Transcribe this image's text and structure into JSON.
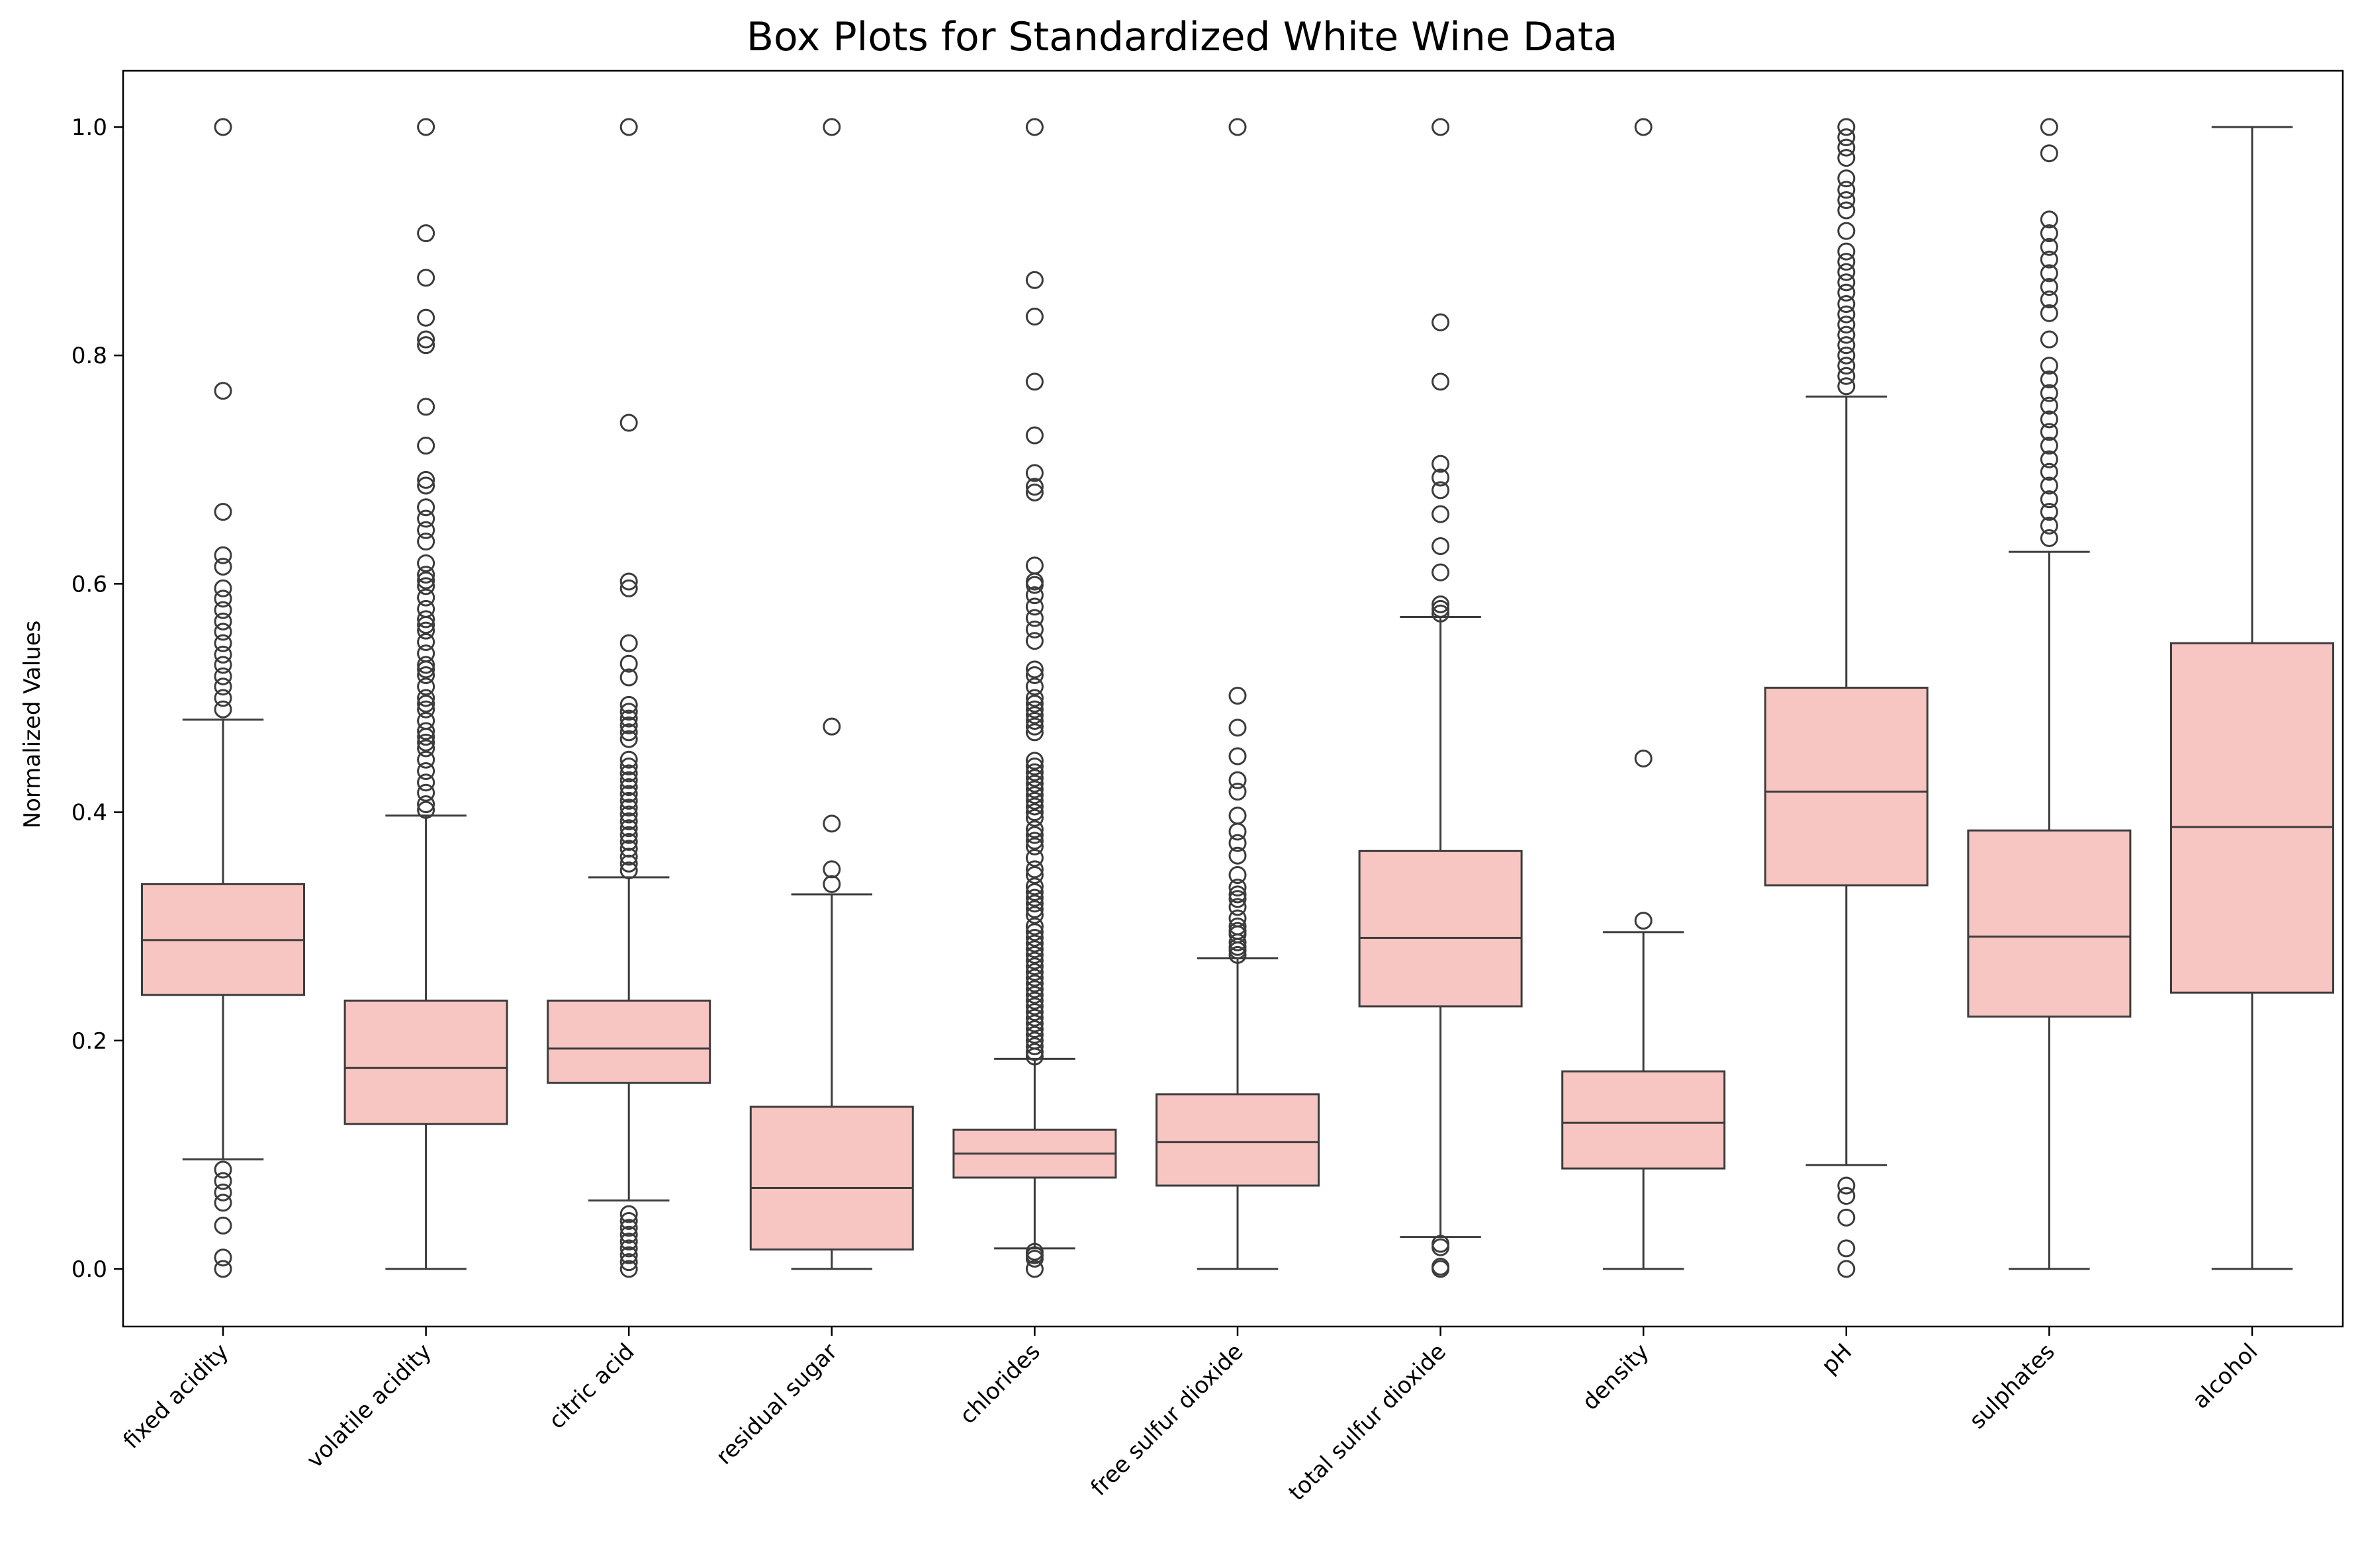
{
  "chart_data": {
    "type": "boxplot",
    "title": "Box Plots for Standardized White Wine Data",
    "xlabel": "",
    "ylabel": "Normalized Values",
    "ylim": [
      -0.05,
      1.05
    ],
    "yticks": [
      "0.0",
      "0.2",
      "0.4",
      "0.6",
      "0.8",
      "1.0"
    ],
    "grid": false,
    "box_color": "#f7c5c2",
    "line_color": "#3c3c3c",
    "categories": [
      "fixed acidity",
      "volatile acidity",
      "citric acid",
      "residual sugar",
      "chlorides",
      "free sulfur dioxide",
      "total sulfur dioxide",
      "density",
      "pH",
      "sulphates",
      "alcohol"
    ],
    "boxes": [
      {
        "q1": 0.24,
        "median": 0.288,
        "q3": 0.337,
        "whisker_low": 0.096,
        "whisker_high": 0.481,
        "outliers": [
          1.0,
          0.769,
          0.663,
          0.625,
          0.615,
          0.596,
          0.587,
          0.577,
          0.567,
          0.558,
          0.548,
          0.538,
          0.529,
          0.519,
          0.51,
          0.5,
          0.49,
          0.087,
          0.077,
          0.067,
          0.058,
          0.038,
          0.01,
          0.0
        ]
      },
      {
        "q1": 0.127,
        "median": 0.176,
        "q3": 0.235,
        "whisker_low": 0.0,
        "whisker_high": 0.397,
        "outliers": [
          1.0,
          0.907,
          0.868,
          0.833,
          0.814,
          0.809,
          0.755,
          0.721,
          0.691,
          0.686,
          0.667,
          0.657,
          0.647,
          0.637,
          0.618,
          0.608,
          0.603,
          0.598,
          0.588,
          0.578,
          0.569,
          0.564,
          0.559,
          0.549,
          0.539,
          0.529,
          0.525,
          0.52,
          0.51,
          0.5,
          0.495,
          0.49,
          0.48,
          0.471,
          0.466,
          0.461,
          0.456,
          0.446,
          0.436,
          0.426,
          0.417,
          0.407,
          0.402
        ]
      },
      {
        "q1": 0.163,
        "median": 0.193,
        "q3": 0.235,
        "whisker_low": 0.06,
        "whisker_high": 0.343,
        "outliers": [
          1.0,
          0.741,
          0.602,
          0.596,
          0.548,
          0.53,
          0.518,
          0.494,
          0.488,
          0.482,
          0.476,
          0.47,
          0.464,
          0.446,
          0.44,
          0.434,
          0.428,
          0.422,
          0.416,
          0.41,
          0.404,
          0.398,
          0.392,
          0.386,
          0.38,
          0.374,
          0.368,
          0.361,
          0.355,
          0.349,
          0.048,
          0.042,
          0.036,
          0.03,
          0.024,
          0.018,
          0.012,
          0.006,
          0.0
        ]
      },
      {
        "q1": 0.017,
        "median": 0.071,
        "q3": 0.142,
        "whisker_low": 0.0,
        "whisker_high": 0.328,
        "outliers": [
          1.0,
          0.475,
          0.39,
          0.35,
          0.337
        ]
      },
      {
        "q1": 0.08,
        "median": 0.101,
        "q3": 0.122,
        "whisker_low": 0.018,
        "whisker_high": 0.184,
        "outliers": [
          1.0,
          0.866,
          0.834,
          0.777,
          0.73,
          0.697,
          0.685,
          0.68,
          0.616,
          0.602,
          0.599,
          0.59,
          0.58,
          0.57,
          0.56,
          0.55,
          0.525,
          0.52,
          0.51,
          0.5,
          0.495,
          0.49,
          0.485,
          0.48,
          0.475,
          0.47,
          0.445,
          0.44,
          0.435,
          0.43,
          0.425,
          0.42,
          0.415,
          0.41,
          0.405,
          0.4,
          0.395,
          0.385,
          0.38,
          0.375,
          0.37,
          0.36,
          0.35,
          0.345,
          0.335,
          0.33,
          0.325,
          0.32,
          0.315,
          0.31,
          0.3,
          0.295,
          0.29,
          0.285,
          0.28,
          0.275,
          0.27,
          0.265,
          0.26,
          0.255,
          0.25,
          0.245,
          0.24,
          0.235,
          0.23,
          0.225,
          0.22,
          0.215,
          0.21,
          0.205,
          0.2,
          0.195,
          0.19,
          0.186,
          0.015,
          0.012,
          0.009,
          0.0
        ]
      },
      {
        "q1": 0.073,
        "median": 0.111,
        "q3": 0.153,
        "whisker_low": 0.0,
        "whisker_high": 0.272,
        "outliers": [
          1.0,
          0.502,
          0.474,
          0.449,
          0.428,
          0.418,
          0.397,
          0.383,
          0.373,
          0.362,
          0.345,
          0.334,
          0.328,
          0.324,
          0.317,
          0.307,
          0.3,
          0.296,
          0.293,
          0.286,
          0.282,
          0.279,
          0.275
        ]
      },
      {
        "q1": 0.23,
        "median": 0.29,
        "q3": 0.366,
        "whisker_low": 0.028,
        "whisker_high": 0.571,
        "outliers": [
          1.0,
          0.829,
          0.777,
          0.705,
          0.693,
          0.682,
          0.661,
          0.633,
          0.61,
          0.582,
          0.578,
          0.574,
          0.022,
          0.019,
          0.002,
          0.0
        ]
      },
      {
        "q1": 0.088,
        "median": 0.128,
        "q3": 0.173,
        "whisker_low": 0.0,
        "whisker_high": 0.295,
        "outliers": [
          1.0,
          0.447,
          0.305
        ]
      },
      {
        "q1": 0.336,
        "median": 0.418,
        "q3": 0.509,
        "whisker_low": 0.091,
        "whisker_high": 0.764,
        "outliers": [
          1.0,
          0.991,
          0.982,
          0.973,
          0.955,
          0.945,
          0.936,
          0.927,
          0.909,
          0.891,
          0.882,
          0.873,
          0.864,
          0.855,
          0.845,
          0.836,
          0.827,
          0.818,
          0.809,
          0.8,
          0.791,
          0.782,
          0.773,
          0.073,
          0.064,
          0.045,
          0.018,
          0.0
        ]
      },
      {
        "q1": 0.221,
        "median": 0.291,
        "q3": 0.384,
        "whisker_low": 0.0,
        "whisker_high": 0.628,
        "outliers": [
          1.0,
          0.977,
          0.919,
          0.907,
          0.895,
          0.884,
          0.872,
          0.86,
          0.849,
          0.837,
          0.814,
          0.791,
          0.779,
          0.767,
          0.756,
          0.744,
          0.733,
          0.721,
          0.709,
          0.698,
          0.686,
          0.674,
          0.663,
          0.651,
          0.64
        ]
      },
      {
        "q1": 0.242,
        "median": 0.387,
        "q3": 0.548,
        "whisker_low": 0.0,
        "whisker_high": 1.0,
        "outliers": []
      }
    ]
  }
}
